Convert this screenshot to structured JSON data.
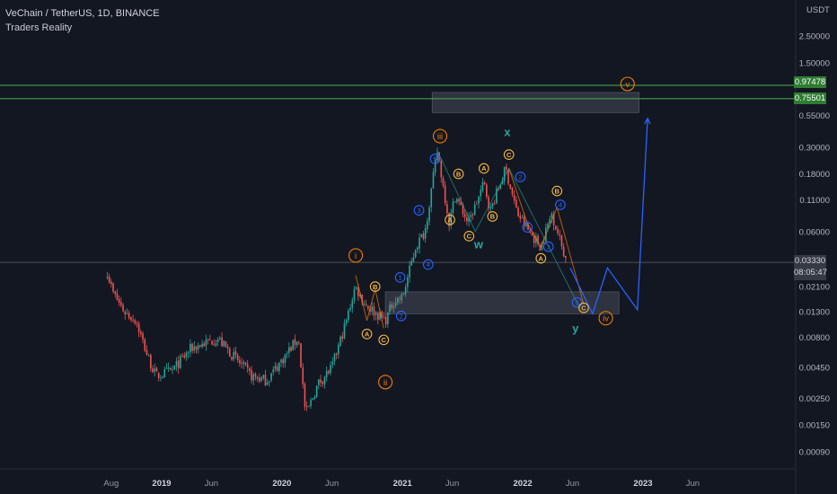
{
  "header": {
    "title": "VeChain / TetherUS, 1D, BINANCE",
    "author": "Traders Reality"
  },
  "price_axis": {
    "currency": "USDT",
    "current_price": "0.03330",
    "countdown": "08:05:47",
    "level_high": "0.97478",
    "level_low": "0.75501"
  },
  "colors": {
    "background": "#131722",
    "candle_up": "#26a69a",
    "candle_down": "#ef5350",
    "level_line": "#4caf50",
    "zone": "#3a3e4a",
    "wave_blue": "#2962ff",
    "wave_yellow": "#f4b740",
    "wave_orange": "#f57c00",
    "wave_teal": "#26a69a"
  },
  "chart_data": {
    "type": "candlestick",
    "title": "VeChain / TetherUS, 1D, BINANCE",
    "y_scale": "log",
    "y_ticks": [
      "2.50000",
      "1.50000",
      "0.97478",
      "0.75501",
      "0.55000",
      "0.30000",
      "0.18000",
      "0.11000",
      "0.06000",
      "0.03330",
      "0.02100",
      "0.01300",
      "0.00800",
      "0.00450",
      "0.00250",
      "0.00150",
      "0.00090"
    ],
    "x_ticks": [
      "Aug",
      "2019",
      "Jun",
      "2020",
      "Jun",
      "2021",
      "Jun",
      "2022",
      "Jun",
      "2023",
      "Jun"
    ],
    "price_path": [
      {
        "t": "2018-07-20",
        "p": 0.028
      },
      {
        "t": "2018-08-05",
        "p": 0.019
      },
      {
        "t": "2018-09-10",
        "p": 0.013
      },
      {
        "t": "2018-10-15",
        "p": 0.011
      },
      {
        "t": "2018-11-20",
        "p": 0.0055
      },
      {
        "t": "2018-12-15",
        "p": 0.0038
      },
      {
        "t": "2019-02-01",
        "p": 0.0042
      },
      {
        "t": "2019-04-01",
        "p": 0.0065
      },
      {
        "t": "2019-06-20",
        "p": 0.0078
      },
      {
        "t": "2019-08-01",
        "p": 0.0058
      },
      {
        "t": "2019-10-01",
        "p": 0.0038
      },
      {
        "t": "2019-11-15",
        "p": 0.0035
      },
      {
        "t": "2020-01-15",
        "p": 0.0058
      },
      {
        "t": "2020-02-20",
        "p": 0.008
      },
      {
        "t": "2020-03-13",
        "p": 0.0018
      },
      {
        "t": "2020-04-20",
        "p": 0.0033
      },
      {
        "t": "2020-06-01",
        "p": 0.0045
      },
      {
        "t": "2020-07-15",
        "p": 0.011
      },
      {
        "t": "2020-08-10",
        "p": 0.021
      },
      {
        "t": "2020-09-10",
        "p": 0.015
      },
      {
        "t": "2020-10-15",
        "p": 0.0125
      },
      {
        "t": "2020-11-10",
        "p": 0.011
      },
      {
        "t": "2020-12-05",
        "p": 0.016
      },
      {
        "t": "2021-01-01",
        "p": 0.017
      },
      {
        "t": "2021-02-10",
        "p": 0.045
      },
      {
        "t": "2021-03-10",
        "p": 0.06
      },
      {
        "t": "2021-04-17",
        "p": 0.28
      },
      {
        "t": "2021-05-23",
        "p": 0.07
      },
      {
        "t": "2021-06-10",
        "p": 0.12
      },
      {
        "t": "2021-07-20",
        "p": 0.07
      },
      {
        "t": "2021-09-05",
        "p": 0.15
      },
      {
        "t": "2021-09-25",
        "p": 0.09
      },
      {
        "t": "2021-11-10",
        "p": 0.2
      },
      {
        "t": "2021-12-15",
        "p": 0.085
      },
      {
        "t": "2022-01-20",
        "p": 0.06
      },
      {
        "t": "2022-02-25",
        "p": 0.045
      },
      {
        "t": "2022-03-30",
        "p": 0.085
      },
      {
        "t": "2022-04-25",
        "p": 0.05
      },
      {
        "t": "2022-05-15",
        "p": 0.033
      }
    ],
    "levels": [
      0.97478,
      0.75501
    ],
    "zones": [
      {
        "from": "2021-04-01",
        "to": "2022-12-20",
        "low": 0.58,
        "high": 0.85
      },
      {
        "from": "2020-11-10",
        "to": "2022-10-20",
        "low": 0.0125,
        "high": 0.019
      }
    ],
    "annotations": [
      {
        "text": "i",
        "style": "orange-circle",
        "t": "2020-08-12",
        "p": 0.038
      },
      {
        "text": "ii",
        "style": "orange-circle",
        "t": "2020-11-10",
        "p": 0.0034
      },
      {
        "text": "iii",
        "style": "orange-circle",
        "t": "2021-04-25",
        "p": 0.37
      },
      {
        "text": "iv",
        "style": "orange-circle",
        "t": "2022-09-10",
        "p": 0.0115
      },
      {
        "text": "v",
        "style": "orange-circle",
        "t": "2022-11-15",
        "p": 1.0
      },
      {
        "text": "A",
        "style": "yellow-circle",
        "t": "2020-09-15",
        "p": 0.0085
      },
      {
        "text": "B",
        "style": "yellow-circle",
        "t": "2020-10-10",
        "p": 0.021
      },
      {
        "text": "C",
        "style": "yellow-circle",
        "t": "2020-11-05",
        "p": 0.0076
      },
      {
        "text": "1",
        "style": "blue-circle",
        "t": "2020-12-25",
        "p": 0.025
      },
      {
        "text": "2",
        "style": "blue-circle",
        "t": "2020-12-28",
        "p": 0.012
      },
      {
        "text": "3",
        "style": "blue-circle",
        "t": "2021-02-20",
        "p": 0.09
      },
      {
        "text": "4",
        "style": "blue-circle",
        "t": "2021-03-20",
        "p": 0.032
      },
      {
        "text": "5",
        "style": "blue-circle",
        "t": "2021-04-10",
        "p": 0.24
      },
      {
        "text": "A",
        "style": "yellow-circle",
        "t": "2021-05-25",
        "p": 0.075
      },
      {
        "text": "B",
        "style": "yellow-circle",
        "t": "2021-06-20",
        "p": 0.18
      },
      {
        "text": "C",
        "style": "yellow-circle",
        "t": "2021-07-22",
        "p": 0.055
      },
      {
        "text": "A",
        "style": "yellow-circle",
        "t": "2021-09-05",
        "p": 0.2
      },
      {
        "text": "B",
        "style": "yellow-circle",
        "t": "2021-10-01",
        "p": 0.08
      },
      {
        "text": "C",
        "style": "yellow-circle",
        "t": "2021-11-20",
        "p": 0.26
      },
      {
        "text": "1",
        "style": "blue-circle",
        "t": "2022-01-15",
        "p": 0.065
      },
      {
        "text": "2",
        "style": "blue-circle",
        "t": "2021-12-25",
        "p": 0.17
      },
      {
        "text": "3",
        "style": "blue-circle",
        "t": "2022-03-20",
        "p": 0.045
      },
      {
        "text": "4",
        "style": "blue-circle",
        "t": "2022-04-25",
        "p": 0.1
      },
      {
        "text": "5",
        "style": "blue-circle",
        "t": "2022-06-15",
        "p": 0.0155
      },
      {
        "text": "A",
        "style": "yellow-circle",
        "t": "2022-02-25",
        "p": 0.036
      },
      {
        "text": "B",
        "style": "yellow-circle",
        "t": "2022-04-15",
        "p": 0.13
      },
      {
        "text": "C",
        "style": "yellow-circle",
        "t": "2022-07-05",
        "p": 0.014
      },
      {
        "text": "w",
        "style": "teal-letter",
        "t": "2021-08-20",
        "p": 0.047
      },
      {
        "text": "x",
        "style": "teal-letter",
        "t": "2021-11-15",
        "p": 0.4
      },
      {
        "text": "y",
        "style": "teal-letter",
        "t": "2022-06-10",
        "p": 0.0095
      }
    ],
    "projection": [
      {
        "t": "2022-05-25",
        "p": 0.03
      },
      {
        "t": "2022-08-01",
        "p": 0.0125
      },
      {
        "t": "2022-09-15",
        "p": 0.03
      },
      {
        "t": "2022-12-15",
        "p": 0.0135
      },
      {
        "t": "2023-01-15",
        "p": 0.52
      }
    ]
  }
}
